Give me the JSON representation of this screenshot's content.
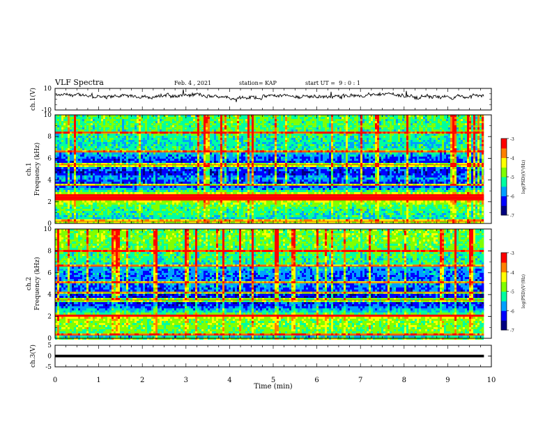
{
  "header": {
    "title": "VLF Spectra",
    "date": "Feb. 4 , 2021",
    "station": "station= KAP",
    "start": "start UT =  9 : 0 : 1"
  },
  "chart_data": [
    {
      "type": "line",
      "panel": "ch1-waveform",
      "ylabel": "ch.1(V)",
      "ylim": [
        -10,
        10
      ],
      "yticks": [
        10,
        -10
      ],
      "x_range": [
        0,
        9.83
      ],
      "baseline_approx": 3,
      "amplitude_approx": 2.5,
      "color": "#000000"
    },
    {
      "type": "heatmap",
      "panel": "ch1-spectrogram",
      "ylabel_line1": "ch.1",
      "ylabel_line2": "Frequency (kHz)",
      "ylim": [
        0,
        10
      ],
      "yticks": [
        0,
        2,
        4,
        6,
        8,
        10
      ],
      "x_range": [
        0,
        9.83
      ],
      "colorbar": {
        "label": "log(PSD)(V²/Hz)",
        "range": [
          -7,
          -3
        ],
        "ticks": [
          -3,
          -4,
          -5,
          -6,
          -7
        ]
      },
      "band_profile_khz_level": [
        [
          0,
          0.2
        ],
        [
          0.5,
          0.4
        ],
        [
          1,
          0.45
        ],
        [
          1.6,
          0.5
        ],
        [
          2.1,
          0.65
        ],
        [
          2.5,
          0.95
        ],
        [
          2.9,
          0.5
        ],
        [
          3.3,
          0.25
        ],
        [
          3.8,
          0.2
        ],
        [
          4.2,
          0.35
        ],
        [
          4.6,
          0.15
        ],
        [
          5.1,
          0.25
        ],
        [
          5.6,
          0.2
        ],
        [
          6.2,
          0.3
        ],
        [
          6.8,
          0.45
        ],
        [
          7.4,
          0.4
        ],
        [
          8,
          0.45
        ],
        [
          9,
          0.5
        ],
        [
          10,
          0.5
        ]
      ],
      "strong_lines_khz": [
        0.2,
        2.2,
        2.5,
        3.5,
        5.4,
        6.6,
        8.4
      ]
    },
    {
      "type": "heatmap",
      "panel": "ch2-spectrogram",
      "ylabel_line1": "ch.2",
      "ylabel_line2": "Frequency (kHz)",
      "ylim": [
        0,
        10
      ],
      "yticks": [
        0,
        2,
        4,
        6,
        8,
        10
      ],
      "x_range": [
        0,
        9.83
      ],
      "colorbar": {
        "label": "log(PSD)(V²/Hz)",
        "range": [
          -7,
          -3
        ],
        "ticks": [
          -3,
          -4,
          -5,
          -6,
          -7
        ]
      },
      "band_profile_khz_level": [
        [
          0,
          0.3
        ],
        [
          0.5,
          0.5
        ],
        [
          1,
          0.55
        ],
        [
          1.6,
          0.55
        ],
        [
          2,
          0.7
        ],
        [
          2.4,
          0.4
        ],
        [
          3,
          0.2
        ],
        [
          3.6,
          0.15
        ],
        [
          4.2,
          0.2
        ],
        [
          5,
          0.3
        ],
        [
          5.6,
          0.25
        ],
        [
          6.2,
          0.3
        ],
        [
          7,
          0.45
        ],
        [
          8,
          0.5
        ],
        [
          9,
          0.55
        ],
        [
          10,
          0.55
        ]
      ],
      "strong_lines_khz": [
        0.3,
        2.0,
        3.5,
        4.2,
        5.1,
        6.6,
        8.0
      ]
    },
    {
      "type": "line",
      "panel": "ch3-waveform",
      "ylabel": "ch.3(V)",
      "ylim": [
        -5,
        5
      ],
      "yticks": [
        5,
        0,
        -5
      ],
      "x_range": [
        0,
        9.83
      ],
      "band": [
        -0.6,
        0.6
      ],
      "color": "#000000"
    }
  ],
  "xaxis": {
    "label": "Time (min)",
    "range": [
      0,
      10
    ],
    "ticks": [
      0,
      1,
      2,
      3,
      4,
      5,
      6,
      7,
      8,
      9,
      10
    ]
  },
  "colors": {
    "axis": "#000000",
    "trace": "#000000",
    "colormap": [
      "#000080",
      "#0000ff",
      "#00a0ff",
      "#00ffa0",
      "#80ff00",
      "#ffff00",
      "#ff8000",
      "#ff0000",
      "#ffffff"
    ]
  }
}
